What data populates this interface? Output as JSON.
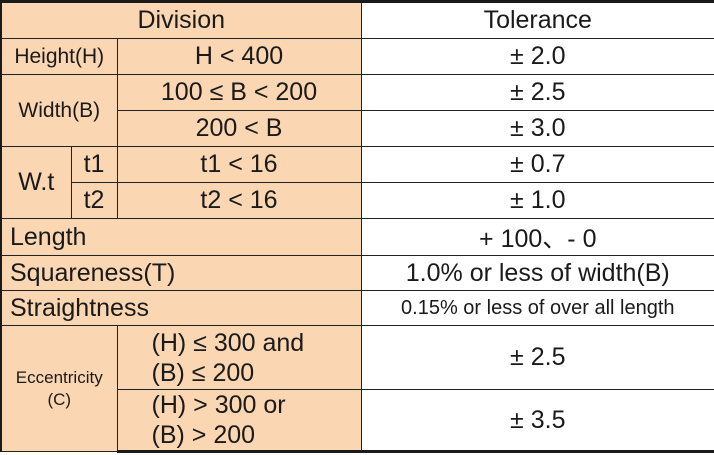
{
  "header": {
    "division": "Division",
    "tolerance": "Tolerance"
  },
  "rows": {
    "height": {
      "label": "Height(H)",
      "condition": "H < 400",
      "tolerance": "± 2.0"
    },
    "width": {
      "label": "Width(B)",
      "conditions": [
        "100 ≤ B < 200",
        "200 < B"
      ],
      "tolerances": [
        "± 2.5",
        "± 3.0"
      ]
    },
    "wt": {
      "label": "W.t",
      "sub": [
        "t1",
        "t2"
      ],
      "conditions": [
        "t1 < 16",
        "t2 < 16"
      ],
      "tolerances": [
        "± 0.7",
        "± 1.0"
      ]
    },
    "length": {
      "label": "Length",
      "tolerance": "+ 100、- 0"
    },
    "squareness": {
      "label": "Squareness(T)",
      "tolerance": "1.0% or less of width(B)"
    },
    "straightness": {
      "label": "Straightness",
      "tolerance": "0.15% or less of over all length"
    },
    "eccentricity": {
      "label_line1": "Eccentricity",
      "label_line2": "(C)",
      "cond1_line1": "(H) ≤ 300 and",
      "cond1_line2": "(B) ≤ 200",
      "cond2_line1": "(H) > 300  or",
      "cond2_line2": "(B) > 200",
      "tolerances": [
        "± 2.5",
        "± 3.5"
      ]
    }
  },
  "colors": {
    "division_bg": "#fbd6b2",
    "tolerance_bg": "#ffffff",
    "border": "#222222"
  }
}
